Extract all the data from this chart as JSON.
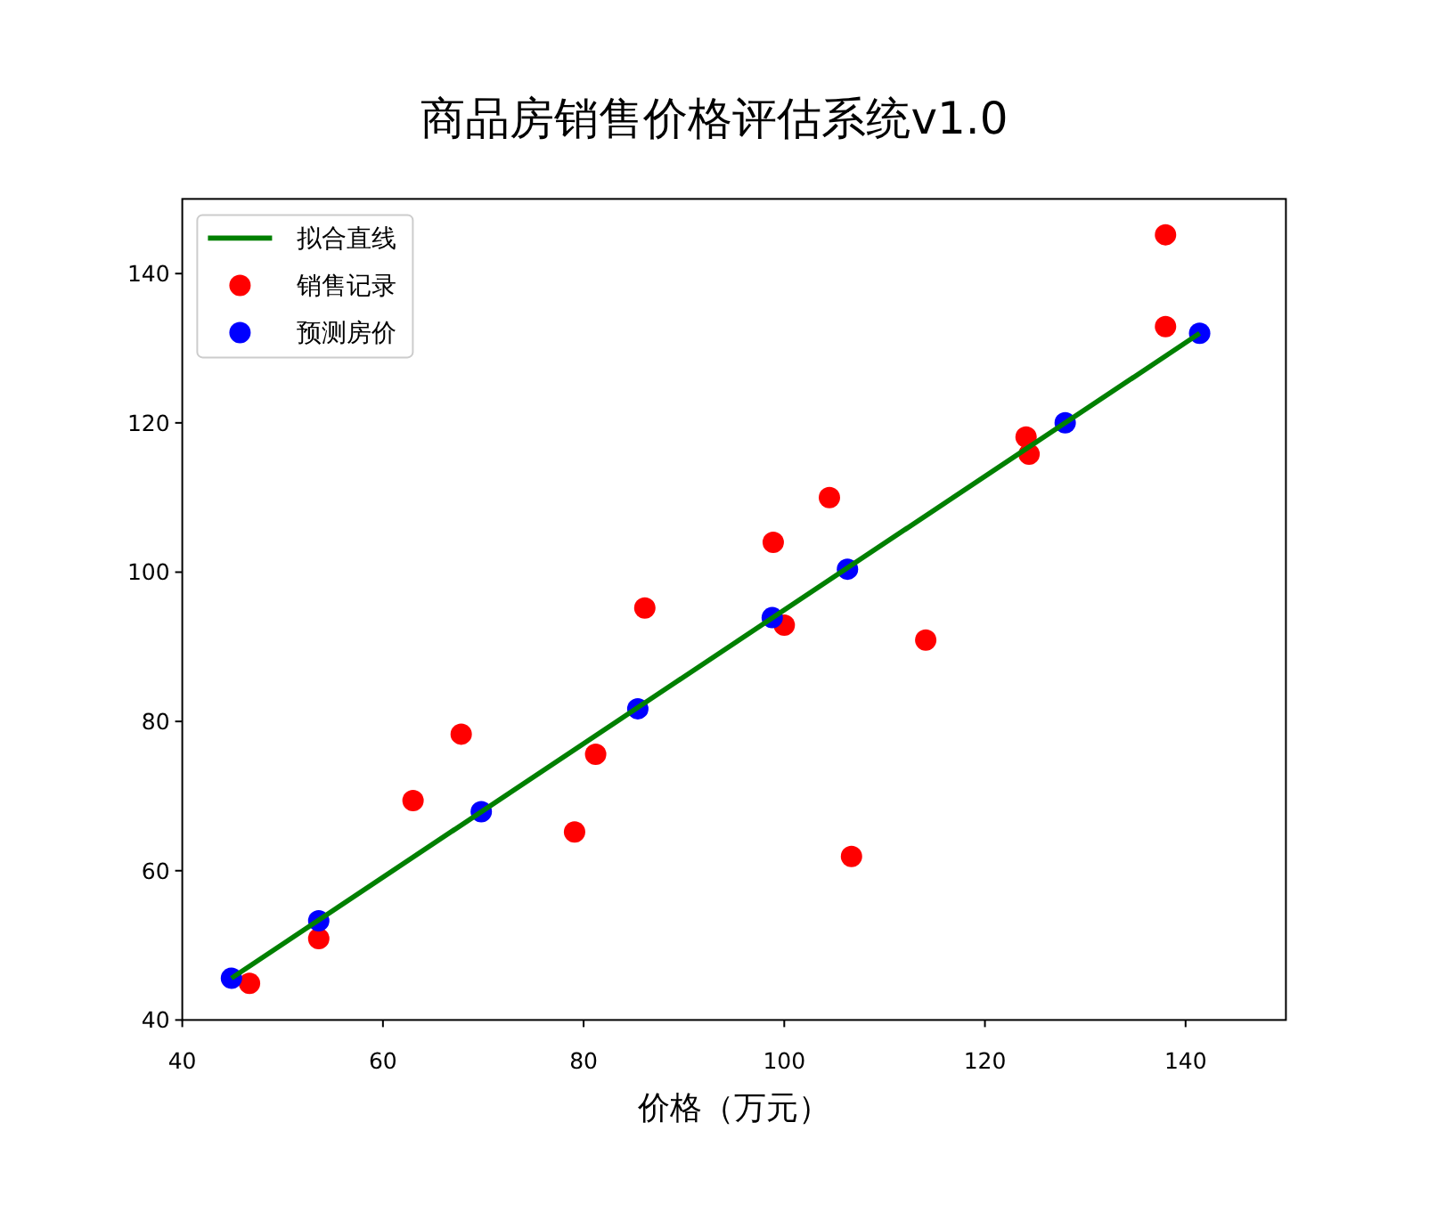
{
  "chart_data": {
    "type": "scatter",
    "title": "商品房销售价格评估系统v1.0",
    "xlabel": "价格（万元）",
    "xlim": [
      40,
      150
    ],
    "ylim": [
      40,
      150
    ],
    "xticks": [
      40,
      60,
      80,
      100,
      120,
      140
    ],
    "yticks": [
      40,
      60,
      80,
      100,
      120,
      140
    ],
    "grid": false,
    "legend": "top left",
    "series": [
      {
        "name": "拟合直线",
        "type": "line",
        "color": "#008000",
        "marker": "none",
        "x": [
          44.9,
          141.4
        ],
        "values": [
          45.6,
          132.0
        ]
      },
      {
        "name": "销售记录",
        "color": "#ff0000",
        "marker": "circle",
        "x": [
          46.7,
          53.6,
          63.0,
          67.8,
          79.1,
          81.2,
          86.1,
          98.9,
          104.5,
          124.1,
          124.4,
          138.0,
          138.0,
          100.0,
          114.1,
          106.7
        ],
        "values": [
          44.9,
          50.9,
          69.4,
          78.3,
          65.2,
          75.6,
          95.2,
          104.0,
          110.0,
          118.1,
          115.8,
          132.9,
          145.2,
          92.9,
          90.9,
          61.9
        ]
      },
      {
        "name": "预测房价",
        "color": "#0000ff",
        "marker": "circle",
        "x": [
          44.9,
          53.6,
          69.8,
          85.4,
          98.8,
          106.3,
          128.0,
          141.4
        ],
        "values": [
          45.6,
          53.3,
          67.9,
          81.7,
          93.9,
          100.4,
          120.0,
          132.0
        ]
      }
    ]
  }
}
